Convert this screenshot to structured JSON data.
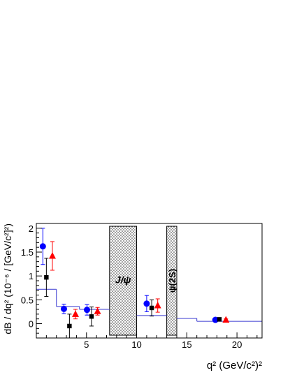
{
  "chart_data": {
    "type": "scatter",
    "title": "",
    "xlabel": "q² (GeV/c²)²",
    "ylabel": "dB / dq² (10⁻⁶ / [GeV/c²]²)",
    "xlim": [
      0,
      22.5
    ],
    "ylim": [
      -0.3,
      2.1
    ],
    "grid": false,
    "xticks": [
      5,
      10,
      15,
      20
    ],
    "xtick_labels": [
      "5",
      "10",
      "15",
      "20"
    ],
    "yticks": [
      0,
      0.5,
      1,
      1.5,
      2
    ],
    "ytick_labels": [
      "0",
      "0.5",
      "1",
      "1.5",
      "2"
    ],
    "vetoed_regions": [
      {
        "label": "J/ψ",
        "x": [
          7.3,
          10.0
        ]
      },
      {
        "label": "ψ(2S)",
        "x": [
          13.0,
          14.0
        ]
      }
    ],
    "series": [
      {
        "marker": "circle",
        "color": "#0000ff",
        "points": [
          {
            "x": 0.65,
            "y": 1.62,
            "err": 0.38
          },
          {
            "x": 2.75,
            "y": 0.31,
            "err": 0.1
          },
          {
            "x": 5.05,
            "y": 0.29,
            "err": 0.11
          },
          {
            "x": 11.0,
            "y": 0.42,
            "err": 0.17
          },
          {
            "x": 17.85,
            "y": 0.08,
            "err": 0.02
          }
        ]
      },
      {
        "marker": "square",
        "color": "#000000",
        "points": [
          {
            "x": 1.0,
            "y": 0.97,
            "err": 0.4
          },
          {
            "x": 3.3,
            "y": -0.05,
            "err": 0.25
          },
          {
            "x": 5.5,
            "y": 0.15,
            "err": 0.2
          },
          {
            "x": 11.5,
            "y": 0.33,
            "err": 0.17
          },
          {
            "x": 18.25,
            "y": 0.09,
            "err": 0.02
          }
        ]
      },
      {
        "marker": "triangle",
        "color": "#ff0000",
        "points": [
          {
            "x": 1.6,
            "y": 1.42,
            "err": 0.3
          },
          {
            "x": 3.9,
            "y": 0.2,
            "err": 0.1
          },
          {
            "x": 6.1,
            "y": 0.26,
            "err": 0.08
          },
          {
            "x": 12.1,
            "y": 0.38,
            "err": 0.14
          },
          {
            "x": 18.9,
            "y": 0.08,
            "err": 0.02
          }
        ]
      }
    ],
    "theory_line": {
      "color": "#3a3ad0",
      "bins": [
        {
          "x0": 0.0,
          "x1": 2.0,
          "y": 0.72
        },
        {
          "x0": 2.0,
          "x1": 4.3,
          "y": 0.36
        },
        {
          "x0": 4.3,
          "x1": 7.3,
          "y": 0.3
        },
        {
          "x0": 10.0,
          "x1": 13.0,
          "y": 0.17
        },
        {
          "x0": 14.0,
          "x1": 16.0,
          "y": 0.11
        },
        {
          "x0": 16.0,
          "x1": 22.5,
          "y": 0.05
        }
      ]
    }
  }
}
